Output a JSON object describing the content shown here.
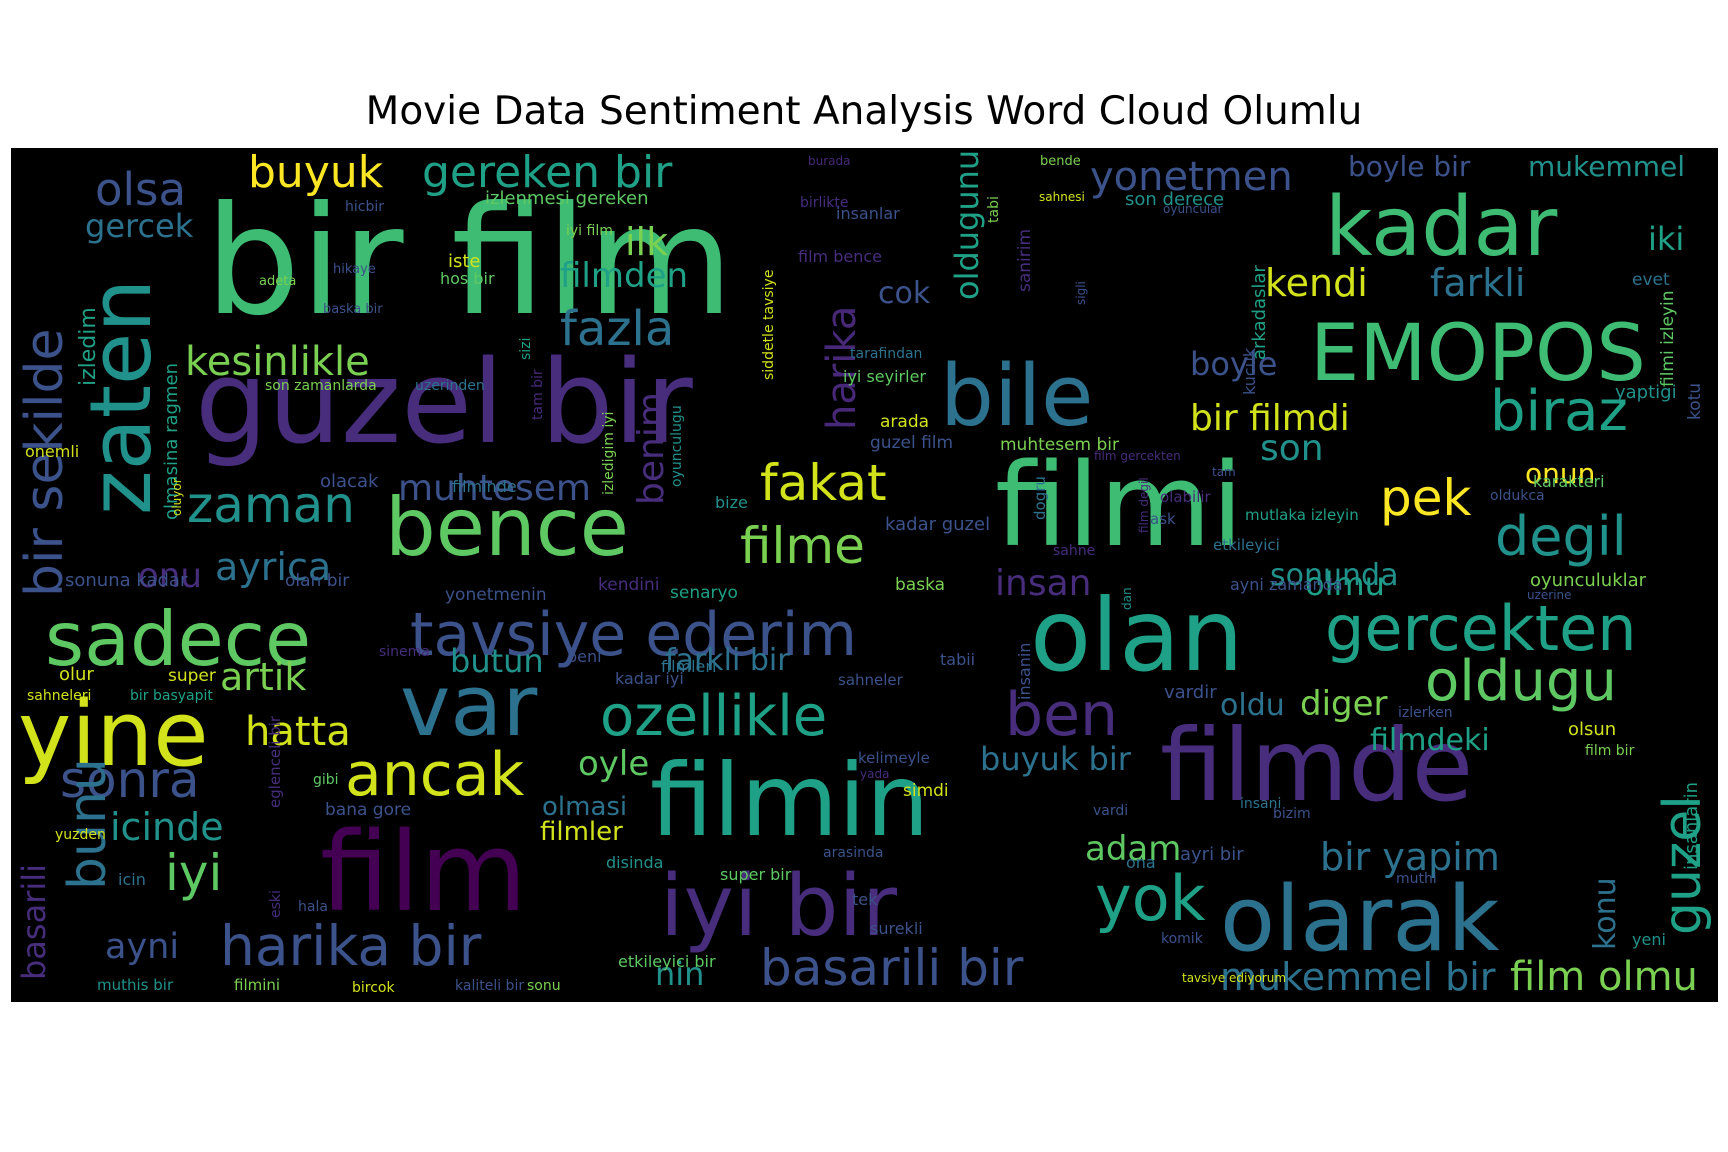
{
  "figure": {
    "title": "Movie Data Sentiment Analysis Word Cloud Olumlu",
    "background_color": "#000000",
    "colormap": "viridis"
  },
  "words": [
    "bir film",
    "kadar",
    "guzel bir",
    "filmi",
    "EMOPOS",
    "bile",
    "zaten",
    "bir sekilde",
    "olsa",
    "buyuk",
    "gereken bir",
    "yonetmen",
    "boyle bir",
    "mukemmel",
    "gercek",
    "ilk",
    "filmden",
    "kendi",
    "farkli",
    "iki",
    "fazla",
    "kesinlikle",
    "boyle",
    "bir filmdi",
    "biraz",
    "bence",
    "zaman",
    "muhtesem",
    "fakat",
    "pek",
    "degil",
    "filme",
    "onun",
    "ayrica",
    "insan",
    "sadece",
    "tavsiye ederim",
    "olan",
    "gercekten",
    "var",
    "ozellikle",
    "ben",
    "oldugu",
    "yine",
    "hatta",
    "artik",
    "diger",
    "sonra",
    "ancak",
    "filmin",
    "filmde",
    "oyle",
    "buyuk bir",
    "bunu",
    "icinde",
    "iyi",
    "film",
    "iyi bir",
    "basarili bir",
    "yok",
    "olarak",
    "harika bir",
    "ayni",
    "nin",
    "bir yapim",
    "mukemmel bir",
    "film olmu",
    "guzel",
    "adam",
    "konu",
    "son",
    "olmu",
    "oldu",
    "harika",
    "benim",
    "cok",
    "oldugunu",
    "sonunda",
    "basarili",
    "butun",
    "farkli bir",
    "filmdeki",
    "olmasi",
    "filmler",
    "onu",
    "izlenmesi gereken",
    "iste",
    "hos bir",
    "izledim",
    "son derece",
    "arkadaslar",
    "olmasina ragmen",
    "son zamanlarda",
    "uzerinden",
    "tarafindan",
    "iyi seyirler",
    "guzel film",
    "muhtesem bir",
    "arada",
    "kucuk",
    "olacak",
    "filminde",
    "bize",
    "kadar guzel",
    "dogru",
    "ask",
    "olabilir",
    "karakteri",
    "oldukca",
    "mutlaka izleyin",
    "etkileyici",
    "oyunculuklar",
    "sonuna kadar",
    "olan bir",
    "yonetmenin",
    "kendini",
    "senaryo",
    "baska",
    "ayni zamanda",
    "uzerine",
    "olur",
    "super",
    "beni",
    "filmleri",
    "tabii",
    "sinema",
    "sahneleri",
    "bir basyapit",
    "vardir",
    "insanin",
    "kadar iyi",
    "sahneler",
    "izlerken",
    "olsun",
    "film bir",
    "kelimeyle",
    "yada",
    "eglenceli bir",
    "gibi",
    "bana gore",
    "simdi",
    "vardi",
    "insani",
    "bizim",
    "ayri bir",
    "yuzden",
    "disinda",
    "arasinda",
    "ona",
    "muthi",
    "icin",
    "super bir",
    "tek",
    "eski",
    "hala",
    "surekli",
    "komik",
    "yeni",
    "etkileyici bir",
    "muthis bir",
    "filmini",
    "bircok",
    "kaliteli bir",
    "sonu",
    "tavsiye ediyorum",
    "insanlarin",
    "yaptigi",
    "filmi izleyin",
    "kotu",
    "evet",
    "adeta",
    "hikaye",
    "baska bir",
    "hicbir",
    "iyi film",
    "insanlar",
    "birlikte",
    "tabi",
    "sanirim",
    "film bence",
    "burada",
    "bende",
    "sahnesi",
    "oyuncular",
    "sizi",
    "tam bir",
    "siddetle tavsiye",
    "izledigim iyi",
    "oyunculugu",
    "oluyor",
    "onemli",
    "film gercekten",
    "tam",
    "sahne",
    "dan",
    "film degil",
    "sigli"
  ]
}
